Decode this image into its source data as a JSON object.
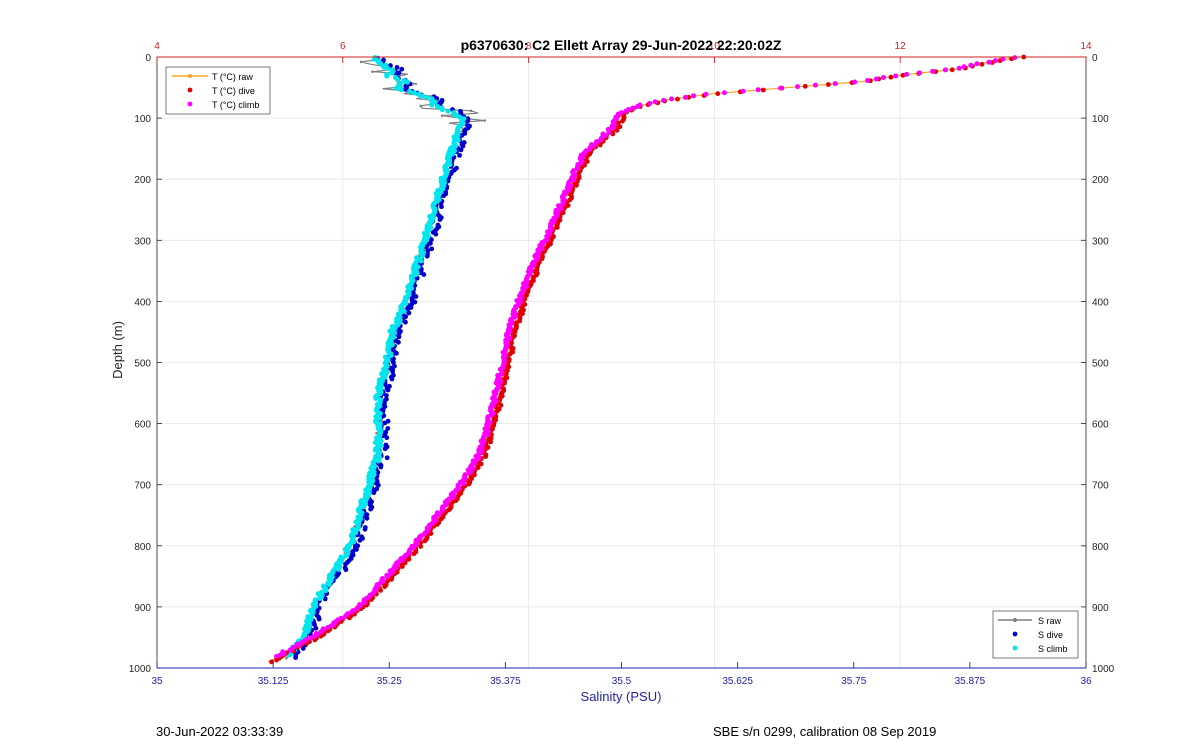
{
  "chart_data": {
    "type": "line",
    "title": "p6370630: C2 Ellett Array 29-Jun-2022 22:20:02Z",
    "ylabel": "Depth (m)",
    "xlabel_bottom": "Salinity (PSU)",
    "ylim": [
      0,
      1000
    ],
    "y_reversed": true,
    "y_ticks": [
      "0",
      "100",
      "200",
      "300",
      "400",
      "500",
      "600",
      "700",
      "800",
      "900",
      "1000"
    ],
    "x_bottom": {
      "range": [
        35,
        36
      ],
      "ticks": [
        "35",
        "35.125",
        "35.25",
        "35.375",
        "35.5",
        "35.625",
        "35.75",
        "35.875",
        "36"
      ],
      "color": "#2222aa"
    },
    "x_top": {
      "range": [
        4,
        14
      ],
      "ticks": [
        "4",
        "6",
        "8",
        "10",
        "12",
        "14"
      ],
      "color": "#cc2222"
    },
    "grid": true,
    "legend_top_left": [
      {
        "label": "T (°C) raw",
        "color": "#f5a623",
        "style": "line-dot"
      },
      {
        "label": "T (°C) dive",
        "color": "#e00000",
        "style": "dot"
      },
      {
        "label": "T (°C) climb",
        "color": "#ff00ff",
        "style": "dot"
      }
    ],
    "legend_bottom_right": [
      {
        "label": "S raw",
        "color": "#7f7f7f",
        "style": "line-dot"
      },
      {
        "label": "S dive",
        "color": "#0000cc",
        "style": "dot"
      },
      {
        "label": "S climb",
        "color": "#00e5ee",
        "style": "dot"
      }
    ],
    "temperature_profile": {
      "depth": [
        0,
        10,
        20,
        30,
        40,
        50,
        60,
        70,
        80,
        85,
        90,
        95,
        100,
        110,
        120,
        140,
        150,
        160,
        180,
        200,
        250,
        300,
        350,
        400,
        450,
        500,
        550,
        600,
        650,
        700,
        750,
        800,
        850,
        900,
        950,
        990
      ],
      "temp": [
        13.3,
        12.9,
        12.6,
        12.0,
        11.6,
        10.8,
        10.0,
        9.5,
        9.2,
        9.1,
        9.05,
        9.0,
        8.98,
        8.95,
        8.9,
        8.75,
        8.68,
        8.62,
        8.55,
        8.5,
        8.35,
        8.2,
        8.05,
        7.92,
        7.82,
        7.75,
        7.68,
        7.6,
        7.5,
        7.3,
        7.05,
        6.8,
        6.5,
        6.2,
        5.7,
        5.2
      ]
    },
    "salinity_profile": {
      "depth": [
        0,
        10,
        20,
        30,
        40,
        50,
        60,
        70,
        80,
        90,
        100,
        110,
        130,
        150,
        200,
        250,
        300,
        350,
        400,
        450,
        500,
        550,
        600,
        650,
        700,
        750,
        800,
        850,
        900,
        950,
        985
      ],
      "salinity": [
        35.235,
        35.24,
        35.255,
        35.25,
        35.27,
        35.26,
        35.28,
        35.3,
        35.3,
        35.32,
        35.33,
        35.33,
        35.325,
        35.32,
        35.31,
        35.3,
        35.29,
        35.28,
        35.27,
        35.255,
        35.25,
        35.24,
        35.24,
        35.24,
        35.23,
        35.22,
        35.21,
        35.19,
        35.17,
        35.16,
        35.14
      ]
    }
  },
  "footer": {
    "left": "30-Jun-2022 03:33:39",
    "right": "SBE s/n 0299, calibration 08 Sep 2019"
  }
}
